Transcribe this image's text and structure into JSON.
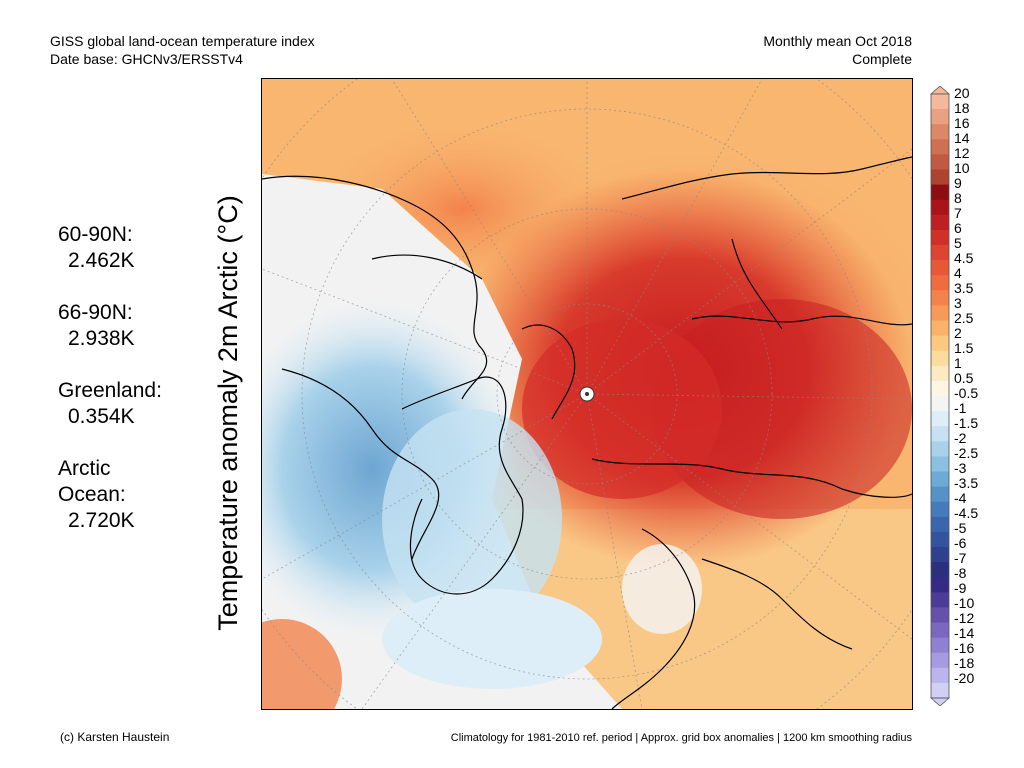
{
  "header": {
    "title_line1": "GISS global land-ocean temperature index",
    "title_line2": "Date base: GHCNv3/ERSSTv4",
    "period_line1": "Monthly mean Oct 2018",
    "period_line2": "Complete"
  },
  "map": {
    "ylabel": "Temperature anomaly 2m Arctic (°C)",
    "projection": "north polar stereographic"
  },
  "stats": [
    {
      "name": "60-90N:",
      "value": "2.462K"
    },
    {
      "name": "66-90N:",
      "value": "2.938K"
    },
    {
      "name": "Greenland:",
      "value": "0.354K"
    },
    {
      "name": "Arctic Ocean:",
      "value": "2.720K"
    }
  ],
  "colorbar": {
    "labels": [
      "20",
      "18",
      "16",
      "14",
      "12",
      "10",
      "9",
      "8",
      "7",
      "6",
      "5",
      "4.5",
      "4",
      "3.5",
      "3",
      "2.5",
      "2",
      "1.5",
      "1",
      "0.5",
      "-0.5",
      "-1",
      "-1.5",
      "-2",
      "-2.5",
      "-3",
      "-3.5",
      "-4",
      "-4.5",
      "-5",
      "-6",
      "-7",
      "-8",
      "-9",
      "-10",
      "-12",
      "-14",
      "-16",
      "-18",
      "-20"
    ],
    "colors": [
      "#f4b89c",
      "#e9a083",
      "#dc8768",
      "#ce7054",
      "#c05a42",
      "#ad4430",
      "#8c0d12",
      "#a8141a",
      "#bf1e22",
      "#d1302a",
      "#de4430",
      "#e85838",
      "#ef6c40",
      "#f3824c",
      "#f69a58",
      "#f8b26a",
      "#fac97f",
      "#fbdc9c",
      "#fcebc2",
      "#fdf6e3",
      "#f4f4f4",
      "#ddeef8",
      "#c6e2f2",
      "#a9d2ea",
      "#8cc0e1",
      "#6eaad6",
      "#5592c8",
      "#467bbb",
      "#3b66ad",
      "#34539e",
      "#2e418f",
      "#2a2f7e",
      "#372a86",
      "#4d3b98",
      "#6550ac",
      "#7b66c0",
      "#9080d0",
      "#a69ae0",
      "#bcb5ed",
      "#d2cff7"
    ]
  },
  "footer": {
    "credit": "(c) Karsten Haustein",
    "note": "Climatology for 1981-2010 ref. period | Approx. grid box anomalies | 1200 km smoothing radius"
  }
}
